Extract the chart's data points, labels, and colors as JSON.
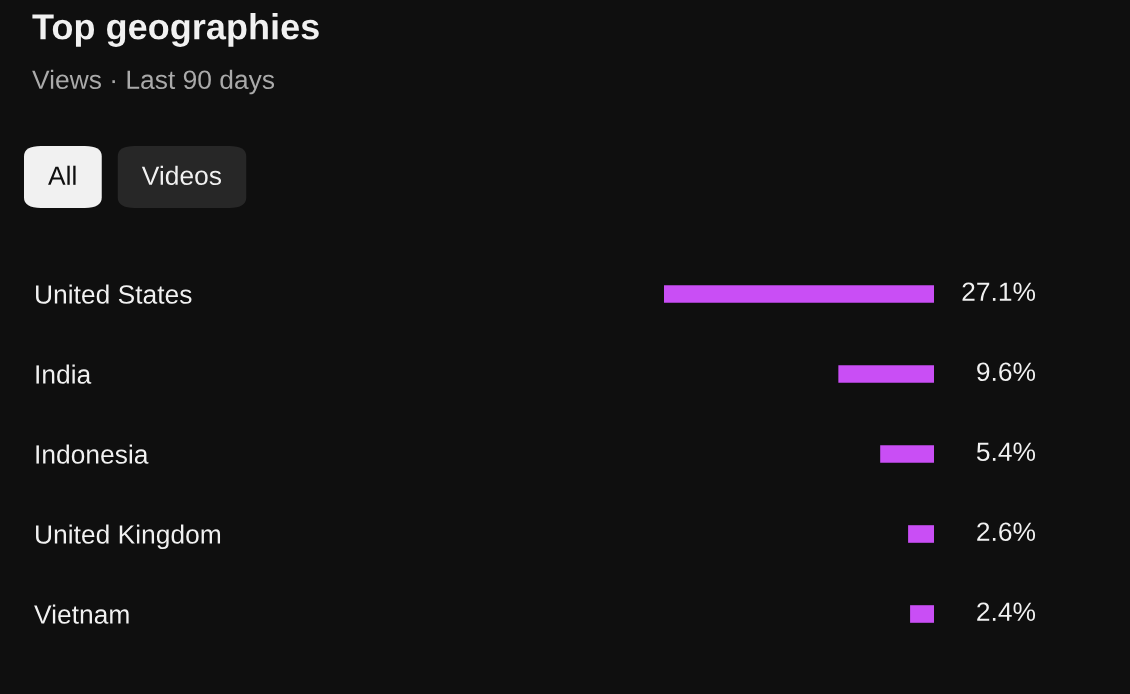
{
  "chart_data": {
    "type": "bar",
    "orientation": "horizontal",
    "title": "Top geographies",
    "subtitle": "Views · Last 90 days",
    "annotations": [
      "All",
      "Videos"
    ],
    "categories": [
      "United States",
      "India",
      "Indonesia",
      "United Kingdom",
      "Vietnam"
    ],
    "values": [
      27.1,
      9.6,
      5.4,
      2.6,
      2.4
    ],
    "value_labels": [
      "27.1%",
      "9.6%",
      "5.4%",
      "2.6%",
      "2.4%"
    ],
    "color": "#c94ef5",
    "grid": false,
    "legend": false
  }
}
